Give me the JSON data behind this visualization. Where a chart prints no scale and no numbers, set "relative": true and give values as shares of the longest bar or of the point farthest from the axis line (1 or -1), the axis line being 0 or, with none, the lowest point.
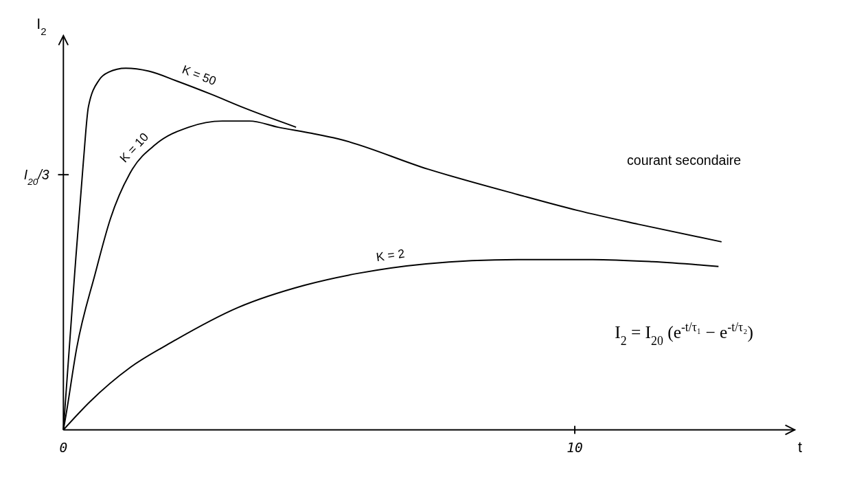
{
  "chart_data": {
    "type": "line",
    "relative": true,
    "xlabel": "t",
    "ylabel": "I$_{2}$",
    "xlim": [
      0,
      14.3
    ],
    "xticks": [
      0,
      10
    ],
    "series": [
      {
        "name": "K = 50",
        "color": "#000000",
        "x": [
          0,
          0.22,
          0.39,
          0.49,
          0.7,
          0.88,
          1.22,
          1.67,
          2.23,
          2.89,
          3.54,
          4.55
        ],
        "values": [
          0,
          0.431,
          0.74,
          0.894,
          0.968,
          0.989,
          1,
          0.992,
          0.964,
          0.928,
          0.89,
          0.837
        ]
      },
      {
        "name": "K = 10",
        "color": "#000000",
        "x": [
          0,
          0.05,
          0.26,
          0.62,
          0.92,
          1.35,
          1.8,
          2.45,
          3.11,
          3.64,
          4.2,
          4.86,
          5.37,
          7.13,
          8.88,
          10.05,
          11.23,
          12.87
        ],
        "values": [
          0,
          0.04,
          0.226,
          0.431,
          0.584,
          0.721,
          0.789,
          0.837,
          0.854,
          0.854,
          0.837,
          0.82,
          0.805,
          0.721,
          0.651,
          0.607,
          0.569,
          0.52
        ]
      },
      {
        "name": "K = 2",
        "color": "#000000",
        "x": [
          0,
          0.52,
          1.31,
          2.1,
          3.41,
          4.72,
          5.77,
          7.09,
          8.88,
          10.35,
          11.52,
          12.81
        ],
        "values": [
          0,
          0.078,
          0.173,
          0.241,
          0.338,
          0.4,
          0.433,
          0.459,
          0.471,
          0.471,
          0.465,
          0.452
        ]
      }
    ],
    "annotations": [
      "courant secondaire",
      "I$_{2}$ = I$_{20}$ (e$^{-t/τ₁}$ − e$^{-t/τ₂}$)",
      "I$_{20}$/3"
    ]
  }
}
